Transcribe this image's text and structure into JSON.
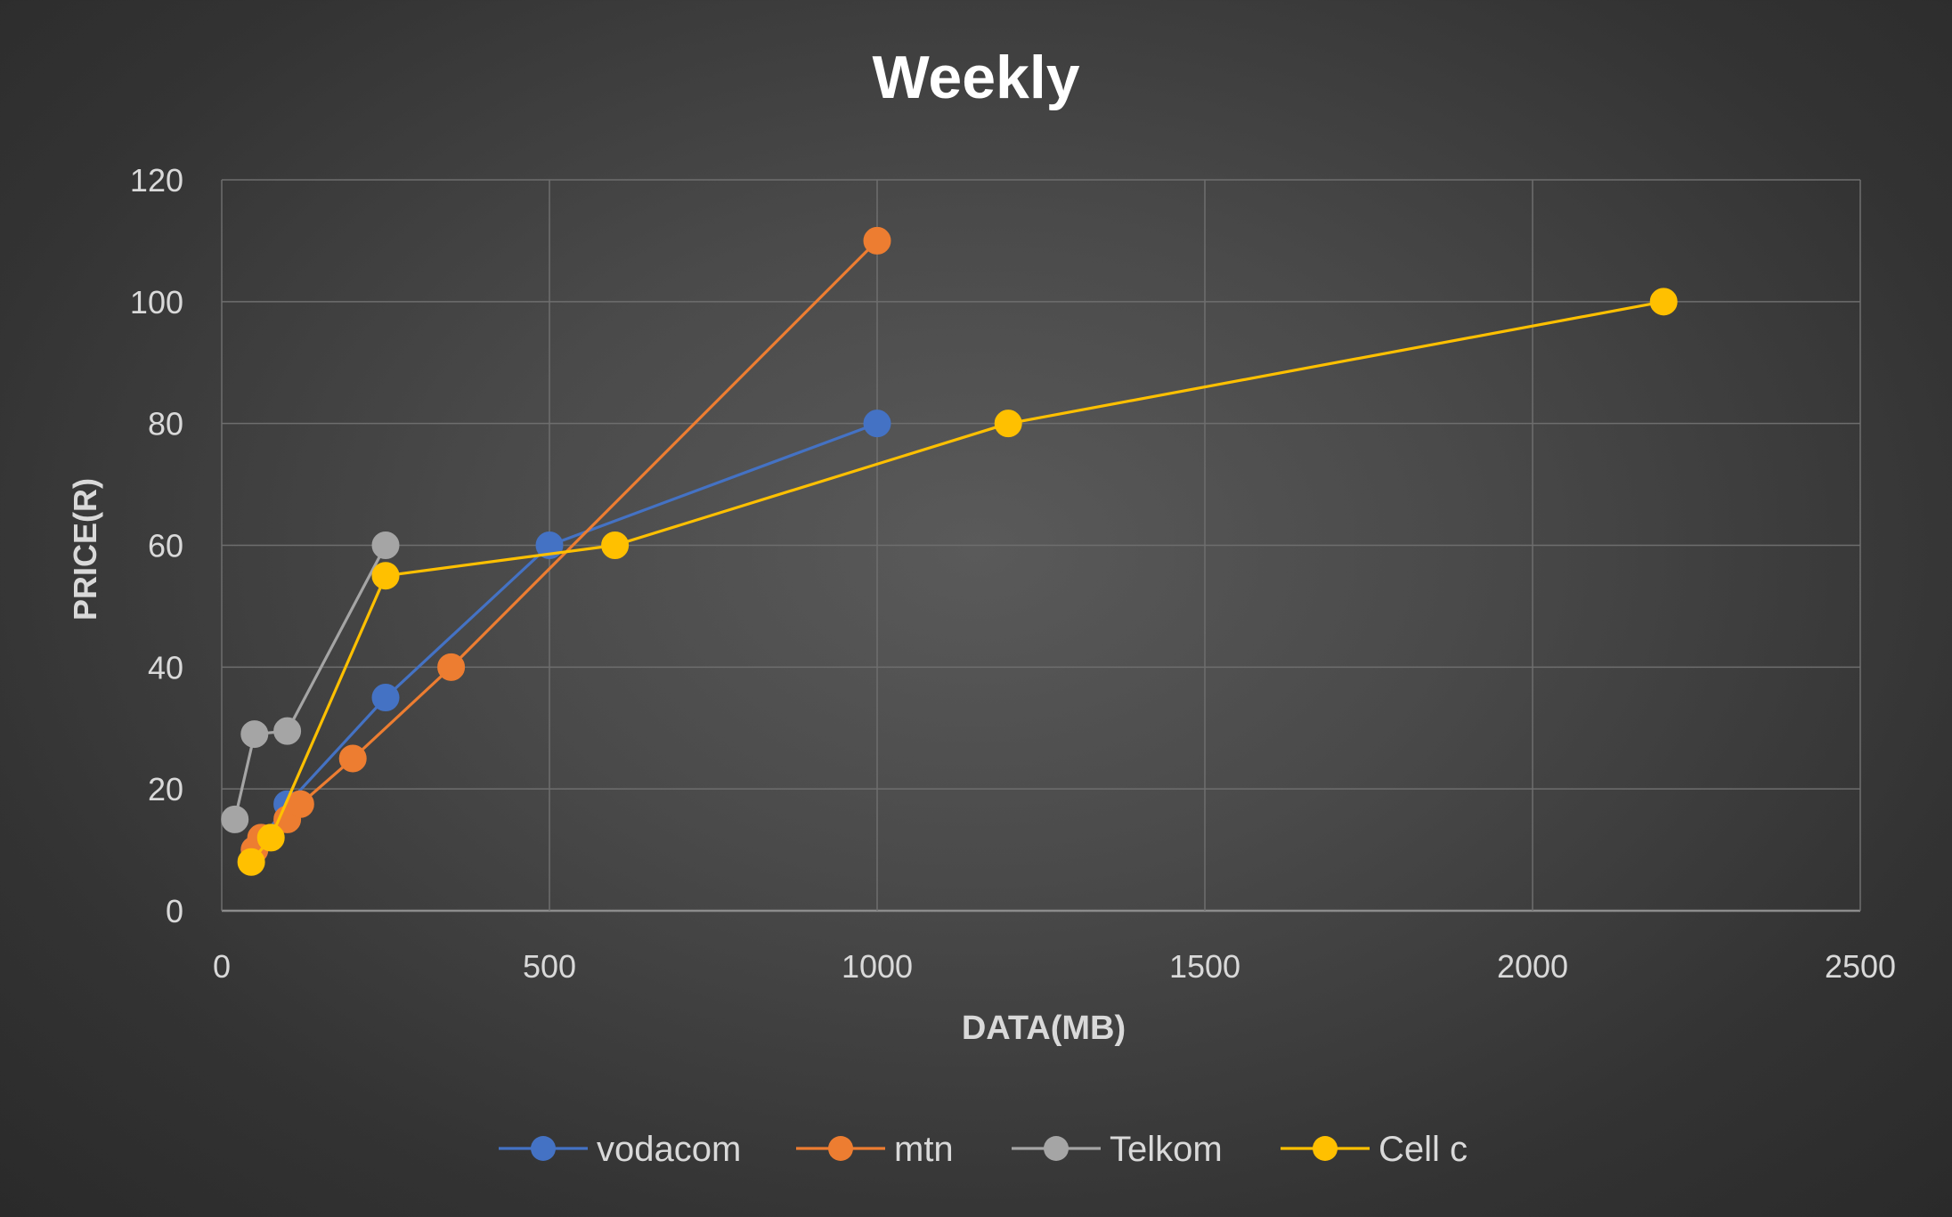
{
  "chart_data": {
    "type": "scatter",
    "title": "Weekly",
    "xlabel": "DATA(MB)",
    "ylabel": "PRICE(R)",
    "xlim": [
      0,
      2500
    ],
    "ylim": [
      0,
      120
    ],
    "xticks": [
      0,
      500,
      1000,
      1500,
      2000,
      2500
    ],
    "yticks": [
      0,
      20,
      40,
      60,
      80,
      100,
      120
    ],
    "grid": true,
    "legend_position": "bottom",
    "series": [
      {
        "name": "vodacom",
        "color": "#4472C4",
        "points": [
          [
            50,
            10
          ],
          [
            100,
            17.5
          ],
          [
            250,
            35
          ],
          [
            500,
            60
          ],
          [
            1000,
            80
          ]
        ]
      },
      {
        "name": "mtn",
        "color": "#ED7D31",
        "points": [
          [
            50,
            10
          ],
          [
            60,
            12
          ],
          [
            100,
            15
          ],
          [
            120,
            17.5
          ],
          [
            200,
            25
          ],
          [
            350,
            40
          ],
          [
            1000,
            110
          ]
        ]
      },
      {
        "name": "Telkom",
        "color": "#A5A5A5",
        "points": [
          [
            20,
            15
          ],
          [
            50,
            29
          ],
          [
            100,
            29.5
          ],
          [
            250,
            60
          ]
        ]
      },
      {
        "name": "Cell c",
        "color": "#FFC000",
        "points": [
          [
            45,
            8
          ],
          [
            75,
            12
          ],
          [
            250,
            55
          ],
          [
            600,
            60
          ],
          [
            1200,
            80
          ],
          [
            2200,
            100
          ]
        ]
      }
    ]
  }
}
